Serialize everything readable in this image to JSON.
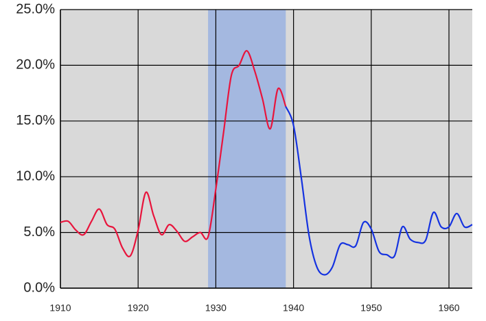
{
  "chart_data": {
    "type": "line",
    "x": [
      1910,
      1911,
      1912,
      1913,
      1914,
      1915,
      1916,
      1917,
      1918,
      1919,
      1920,
      1921,
      1922,
      1923,
      1924,
      1925,
      1926,
      1927,
      1928,
      1929,
      1930,
      1931,
      1932,
      1933,
      1934,
      1935,
      1936,
      1937,
      1938,
      1939,
      1940,
      1941,
      1942,
      1943,
      1944,
      1945,
      1946,
      1947,
      1948,
      1949,
      1950,
      1951,
      1952,
      1953,
      1954,
      1955,
      1956,
      1957,
      1958,
      1959,
      1960,
      1961,
      1962,
      1963
    ],
    "series": [
      {
        "color": "#e8143c",
        "values": [
          5.9,
          6.0,
          5.2,
          4.8,
          6.0,
          7.1,
          5.7,
          5.3,
          3.6,
          2.9,
          5.2,
          8.6,
          6.5,
          4.8,
          5.7,
          5.1,
          4.2,
          4.6,
          5.0,
          4.6,
          8.9,
          14.0,
          19.1,
          20.0,
          21.3,
          19.5,
          17.0,
          14.3,
          17.9,
          16.3,
          null,
          null,
          null,
          null,
          null,
          null,
          null,
          null,
          null,
          null,
          null,
          null,
          null,
          null,
          null,
          null,
          null,
          null,
          null,
          null,
          null,
          null,
          null,
          null
        ]
      },
      {
        "color": "#1432e0",
        "values": [
          null,
          null,
          null,
          null,
          null,
          null,
          null,
          null,
          null,
          null,
          null,
          null,
          null,
          null,
          null,
          null,
          null,
          null,
          null,
          null,
          null,
          null,
          null,
          null,
          null,
          null,
          null,
          null,
          null,
          16.3,
          14.6,
          9.9,
          4.7,
          1.9,
          1.2,
          1.9,
          3.9,
          3.9,
          3.8,
          5.9,
          5.3,
          3.3,
          3.0,
          2.9,
          5.5,
          4.4,
          4.1,
          4.3,
          6.8,
          5.5,
          5.5,
          6.7,
          5.5,
          5.7
        ]
      }
    ],
    "xlim": [
      1910,
      1963
    ],
    "xticks": [
      1910,
      1920,
      1930,
      1940,
      1950,
      1960
    ],
    "ylim": [
      0,
      25
    ],
    "yticks": [
      {
        "value": 0,
        "label": "0.0%"
      },
      {
        "value": 5,
        "label": "5.0%"
      },
      {
        "value": 10,
        "label": "10.0%"
      },
      {
        "value": 15,
        "label": "15.0%"
      },
      {
        "value": 20,
        "label": "20.0%"
      },
      {
        "value": 25,
        "label": "25.0%"
      }
    ],
    "grid": true,
    "background": "#d9d9d9",
    "shaded_span": [
      1929,
      1939
    ],
    "shaded_color": "#a4b8e0"
  }
}
